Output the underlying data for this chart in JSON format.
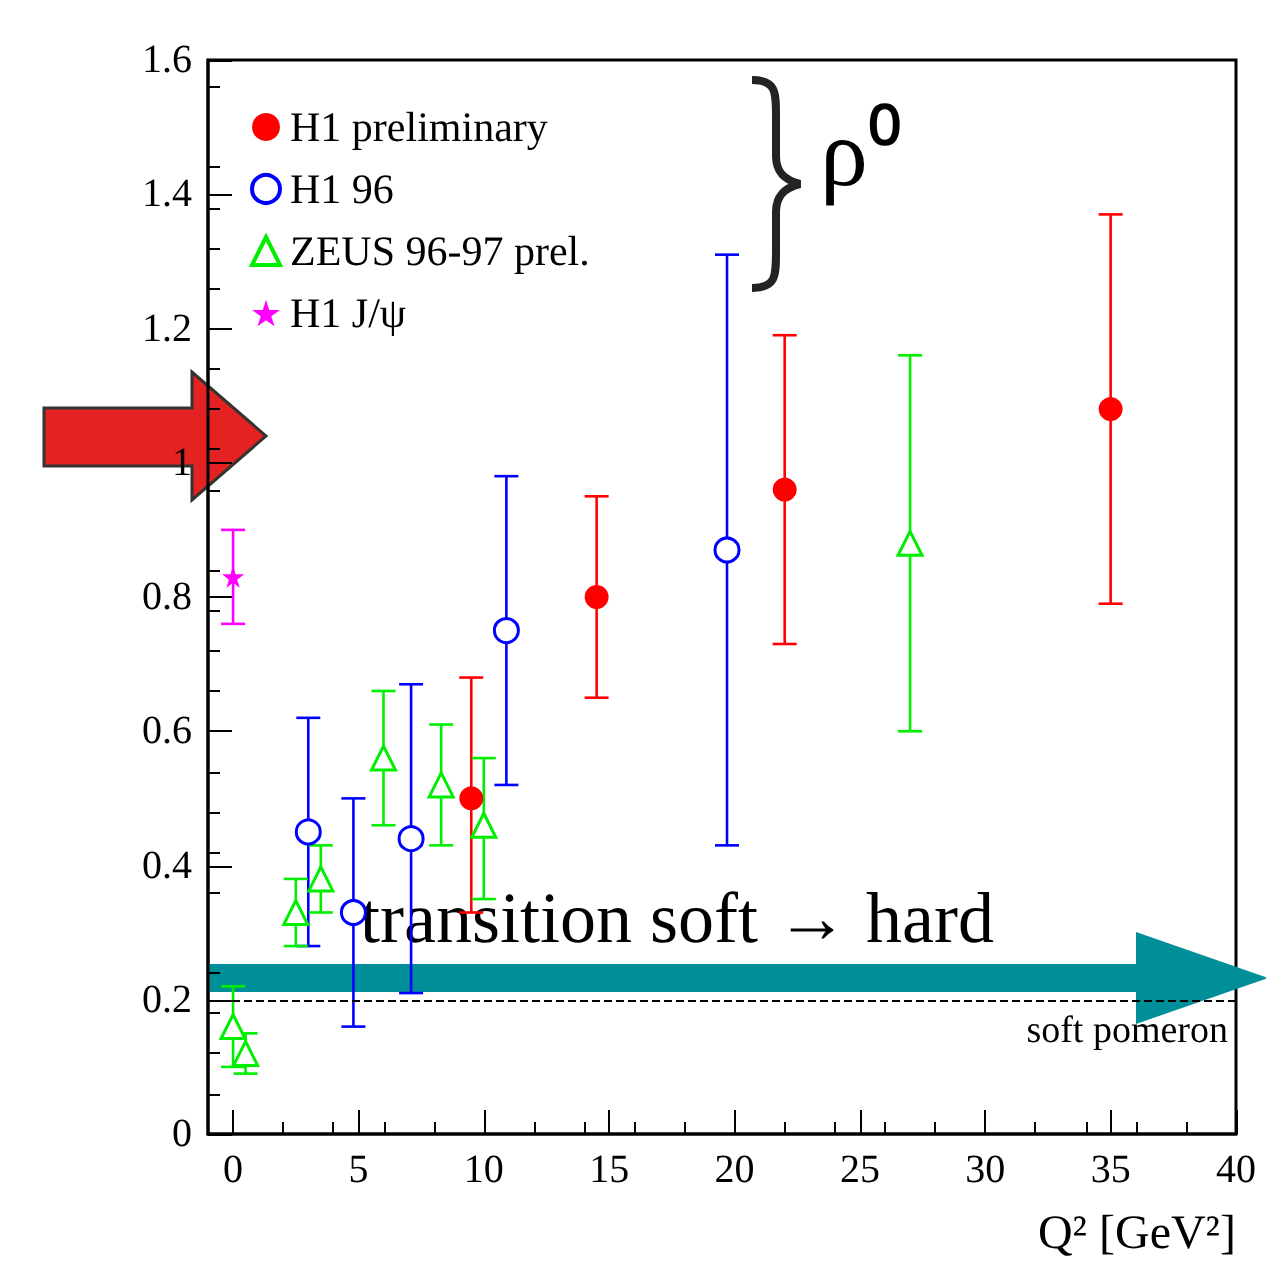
{
  "chart_data": {
    "type": "scatter",
    "xlabel": "Q² [GeV²]",
    "xlim": [
      -1,
      40
    ],
    "ylim": [
      0,
      1.6
    ],
    "xticks": [
      0,
      5,
      10,
      15,
      20,
      25,
      30,
      35,
      40
    ],
    "yticks": [
      0,
      0.2,
      0.4,
      0.6,
      0.8,
      1,
      1.2,
      1.4,
      1.6
    ],
    "grid": false,
    "legend": "top left",
    "series": [
      {
        "name": "H1 preliminary",
        "color": "#ff0000",
        "marker": "circle",
        "x": [
          9.5,
          14.5,
          22,
          35
        ],
        "values": [
          0.5,
          0.8,
          0.96,
          1.08
        ],
        "errors": [
          [
            0.33,
            0.68
          ],
          [
            0.65,
            0.95
          ],
          [
            0.73,
            1.19
          ],
          [
            0.79,
            1.37
          ]
        ]
      },
      {
        "name": "H1 96",
        "color": "#0000ff",
        "marker": "circle-open",
        "x": [
          3,
          4.8,
          7.1,
          10.9,
          19.7
        ],
        "values": [
          0.45,
          0.33,
          0.44,
          0.75,
          0.87
        ],
        "errors": [
          [
            0.28,
            0.62
          ],
          [
            0.16,
            0.5
          ],
          [
            0.21,
            0.67
          ],
          [
            0.52,
            0.98
          ],
          [
            0.43,
            1.31
          ]
        ]
      },
      {
        "name": "ZEUS 96-97 prel.",
        "color": "#00ee00",
        "marker": "triangle-open",
        "x": [
          0,
          0.5,
          2.5,
          3.5,
          6,
          8.3,
          10,
          27
        ],
        "values": [
          0.16,
          0.12,
          0.33,
          0.38,
          0.56,
          0.52,
          0.46,
          0.88
        ],
        "errors": [
          [
            0.1,
            0.22
          ],
          [
            0.09,
            0.15
          ],
          [
            0.28,
            0.38
          ],
          [
            0.33,
            0.43
          ],
          [
            0.46,
            0.66
          ],
          [
            0.43,
            0.61
          ],
          [
            0.35,
            0.56
          ],
          [
            0.6,
            1.16
          ]
        ]
      },
      {
        "name": "H1 J/ψ",
        "color": "#ff00ff",
        "marker": "star",
        "x": [
          0
        ],
        "values": [
          0.83
        ],
        "errors": [
          [
            0.76,
            0.9
          ]
        ]
      }
    ],
    "ref_lines": [
      {
        "axis": "y",
        "value": 0.2,
        "label": "soft pomeron",
        "line_style": "dashed",
        "color": "#000000"
      }
    ],
    "annotations": [
      "ρ⁰",
      "transition soft → hard"
    ]
  }
}
